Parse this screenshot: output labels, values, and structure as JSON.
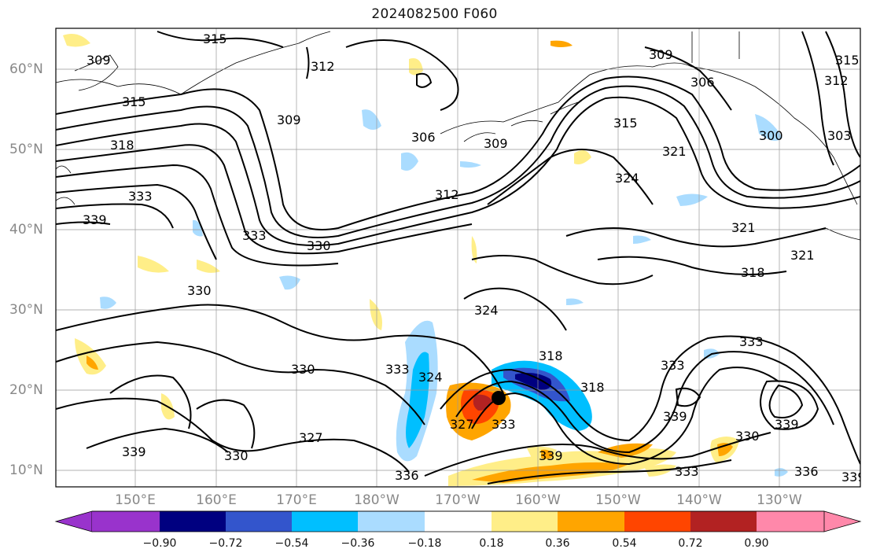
{
  "title": "2024082500 F060",
  "lat_labels": [
    "60°N",
    "50°N",
    "40°N",
    "30°N",
    "20°N",
    "10°N"
  ],
  "lon_labels": [
    "150°E",
    "160°E",
    "170°E",
    "180°W",
    "170°W",
    "160°W",
    "150°W",
    "140°W",
    "130°W"
  ],
  "colorbar": {
    "ticks": [
      "−0.90",
      "−0.72",
      "−0.54",
      "−0.36",
      "−0.18",
      "0.18",
      "0.36",
      "0.54",
      "0.72",
      "0.90"
    ],
    "colors": [
      "#9933cc",
      "#000080",
      "#3355cc",
      "#00bfff",
      "#aadcff",
      "#ffffff",
      "#ffee88",
      "#ffa500",
      "#ff4500",
      "#b22222",
      "#ff88aa"
    ]
  },
  "contour_labels": [
    "315",
    "312",
    "309",
    "306",
    "303",
    "300",
    "318",
    "321",
    "324",
    "327",
    "330",
    "333",
    "336",
    "339"
  ],
  "storm_marker": "storm-center"
}
